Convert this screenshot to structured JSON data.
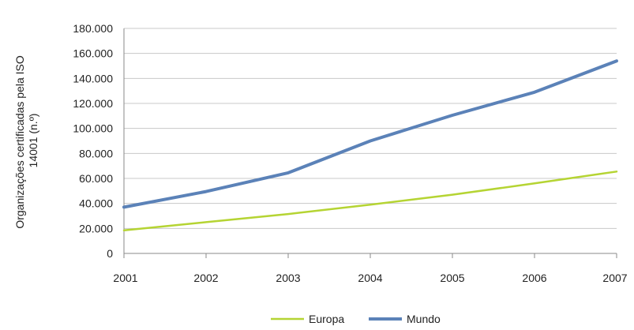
{
  "chart_data": {
    "type": "line",
    "title": "",
    "xlabel": "",
    "ylabel_lines": [
      "Organizações certificadas pela ISO",
      "14001 (n.º)"
    ],
    "x": [
      "2001",
      "2002",
      "2003",
      "2004",
      "2005",
      "2006",
      "2007"
    ],
    "ylim": [
      0,
      180000
    ],
    "yticks": [
      0,
      20000,
      40000,
      60000,
      80000,
      100000,
      120000,
      140000,
      160000,
      180000
    ],
    "ytick_labels": [
      "0",
      "20.000",
      "40.000",
      "60.000",
      "80.000",
      "100.000",
      "120.000",
      "140.000",
      "160.000",
      "180.000"
    ],
    "grid": "horizontal",
    "legend_position": "bottom-center",
    "series": [
      {
        "name": "Europa",
        "color": "#b5d433",
        "values": [
          18500,
          25000,
          31500,
          39000,
          47000,
          56000,
          65500
        ]
      },
      {
        "name": "Mundo",
        "color": "#5b82b8",
        "values": [
          37000,
          49500,
          64500,
          90000,
          110500,
          129000,
          154000
        ]
      }
    ]
  }
}
